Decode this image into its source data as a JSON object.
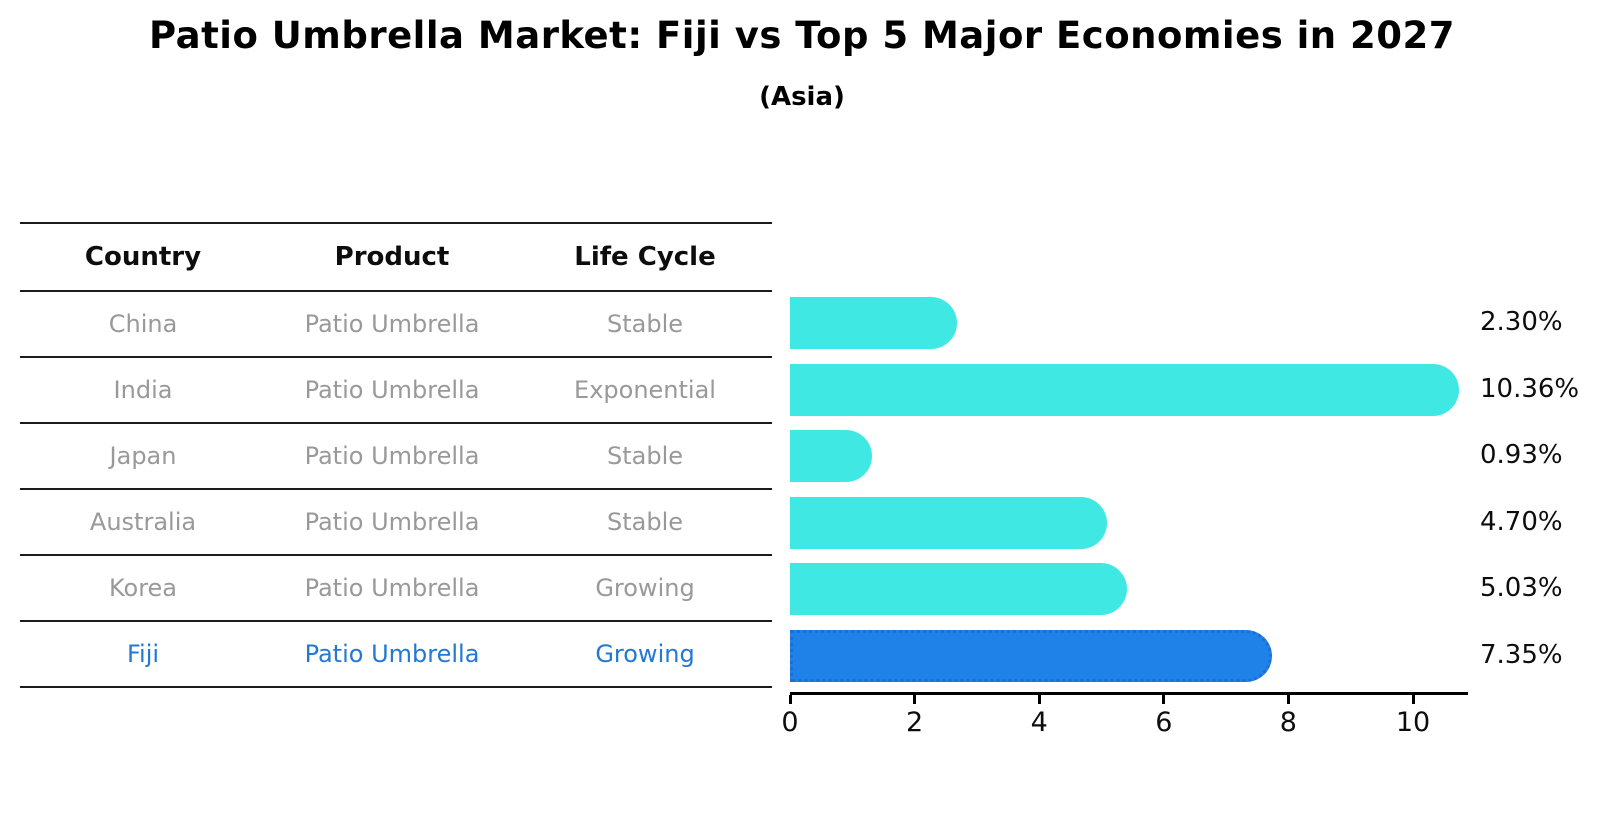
{
  "title": "Patio Umbrella Market: Fiji vs Top 5 Major Economies in 2027",
  "subtitle": "(Asia)",
  "table": {
    "headers": [
      "Country",
      "Product",
      "Life Cycle"
    ],
    "rows": [
      {
        "country": "China",
        "product": "Patio Umbrella",
        "life_cycle": "Stable",
        "highlighted": false
      },
      {
        "country": "India",
        "product": "Patio Umbrella",
        "life_cycle": "Exponential",
        "highlighted": false
      },
      {
        "country": "Japan",
        "product": "Patio Umbrella",
        "life_cycle": "Stable",
        "highlighted": false
      },
      {
        "country": "Australia",
        "product": "Patio Umbrella",
        "life_cycle": "Stable",
        "highlighted": false
      },
      {
        "country": "Korea",
        "product": "Patio Umbrella",
        "life_cycle": "Growing",
        "highlighted": false
      },
      {
        "country": "Fiji",
        "product": "Patio Umbrella",
        "life_cycle": "Growing",
        "highlighted": true
      }
    ]
  },
  "chart_data": {
    "type": "bar",
    "orientation": "horizontal",
    "title": "Patio Umbrella Market: Fiji vs Top 5 Major Economies in 2027",
    "subtitle": "(Asia)",
    "categories": [
      "China",
      "India",
      "Japan",
      "Australia",
      "Korea",
      "Fiji"
    ],
    "values": [
      2.3,
      10.36,
      0.93,
      4.7,
      5.03,
      7.35
    ],
    "value_labels": [
      "2.30%",
      "10.36%",
      "0.93%",
      "4.70%",
      "5.03%",
      "7.35%"
    ],
    "xlabel": "",
    "ylabel": "",
    "x_ticks": [
      0,
      2,
      4,
      6,
      8,
      10
    ],
    "xlim": [
      0,
      10.88
    ],
    "grid": false,
    "legend": "none",
    "highlight_category": "Fiji",
    "highlight_style": "dotted-border",
    "colors": {
      "bar_default": "#40e8e4",
      "bar_highlight": "#1f82e8",
      "highlight_text": "#2378d2",
      "table_text": "#999999",
      "header_text": "#0d0d0d",
      "axis": "#000000"
    }
  }
}
